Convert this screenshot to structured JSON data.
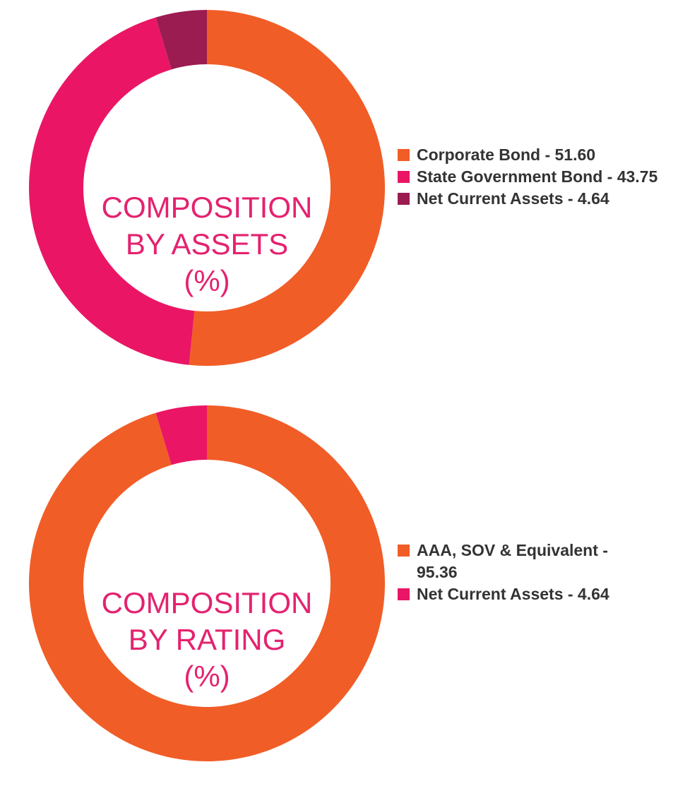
{
  "colors": {
    "orange": "#f15d27",
    "pink": "#ea1665",
    "maroon": "#9b1c50",
    "center_text": "#e4226f",
    "legend_text": "#333333"
  },
  "chart_data": [
    {
      "type": "pie",
      "donut": true,
      "center_label": [
        "COMPOSITION",
        "BY ASSETS",
        "(%)"
      ],
      "slices": [
        {
          "label": "Corporate Bond - 51.60",
          "name": "Corporate Bond",
          "value": 51.6,
          "color": "#f15d27"
        },
        {
          "label": "State Government Bond - 43.75",
          "name": "State Government Bond",
          "value": 43.75,
          "color": "#ea1665"
        },
        {
          "label": "Net Current Assets - 4.64",
          "name": "Net Current Assets",
          "value": 4.64,
          "color": "#9b1c50"
        }
      ],
      "legend_position": "right"
    },
    {
      "type": "pie",
      "donut": true,
      "center_label": [
        "COMPOSITION",
        "BY RATING",
        "(%)"
      ],
      "slices": [
        {
          "label": "AAA, SOV & Equivalent - 95.36",
          "name": "AAA, SOV & Equivalent",
          "value": 95.36,
          "color": "#f15d27"
        },
        {
          "label": "Net Current Assets - 4.64",
          "name": "Net Current Assets",
          "value": 4.64,
          "color": "#ea1665"
        }
      ],
      "legend_position": "right"
    }
  ]
}
